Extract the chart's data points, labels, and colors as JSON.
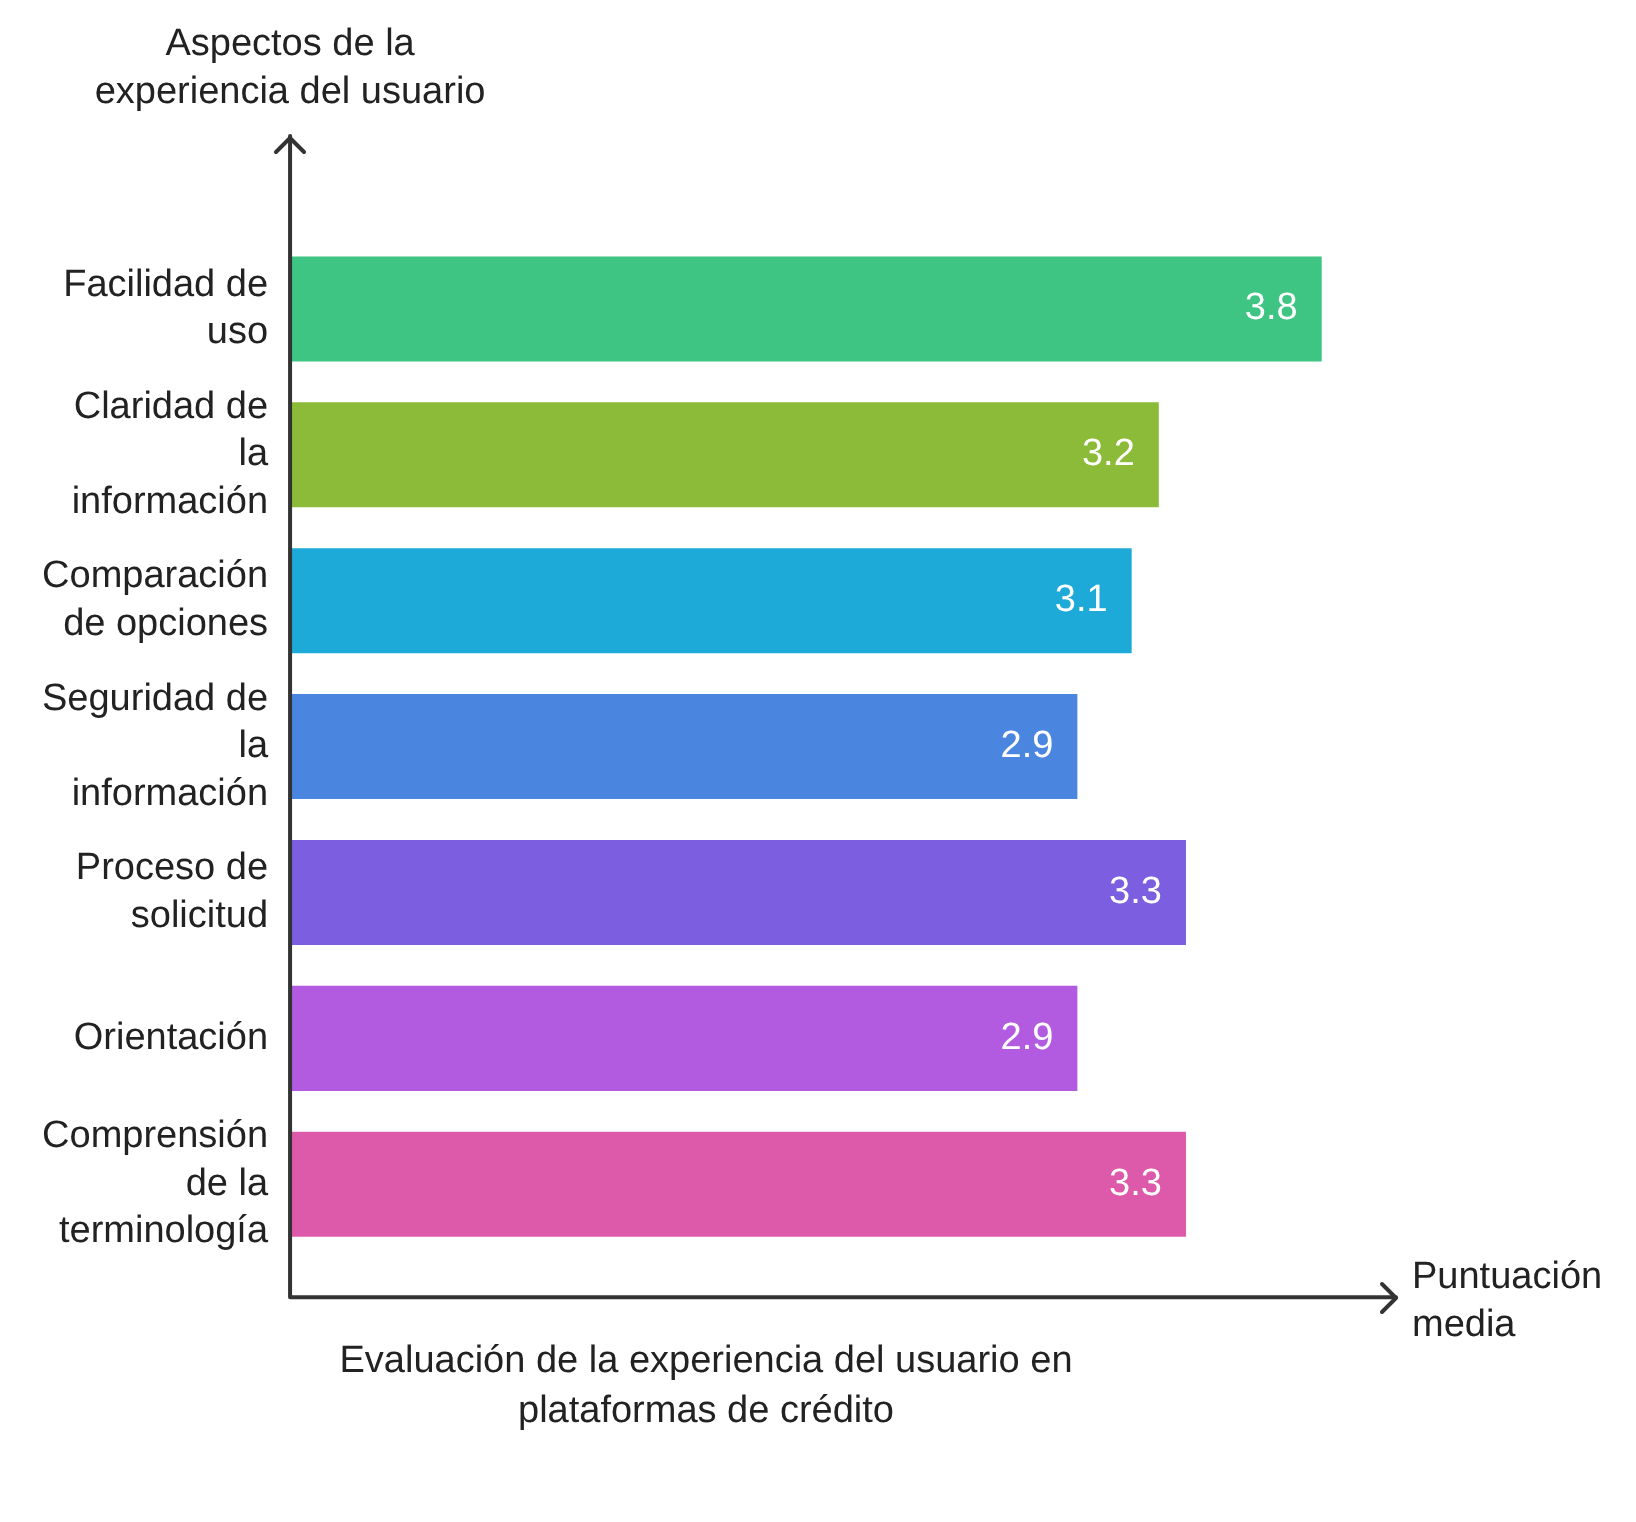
{
  "chart_data": {
    "type": "bar",
    "orientation": "horizontal",
    "title": "Evaluación de la experiencia del usuario en plataformas de crédito",
    "xlabel": "Puntuación media",
    "ylabel": "Aspectos de la experiencia del usuario",
    "categories": [
      "Facilidad de uso",
      "Claridad de la información",
      "Comparación de opciones",
      "Seguridad de la información",
      "Proceso de solicitud",
      "Orientación",
      "Comprensión de la terminología"
    ],
    "values": [
      3.8,
      3.2,
      3.1,
      2.9,
      3.3,
      2.9,
      3.3
    ],
    "colors": [
      "#3ec483",
      "#8cbb3a",
      "#1eaad9",
      "#4a86e0",
      "#7b5fe0",
      "#b25ae0",
      "#dd5aaa"
    ],
    "data_labels": true
  }
}
